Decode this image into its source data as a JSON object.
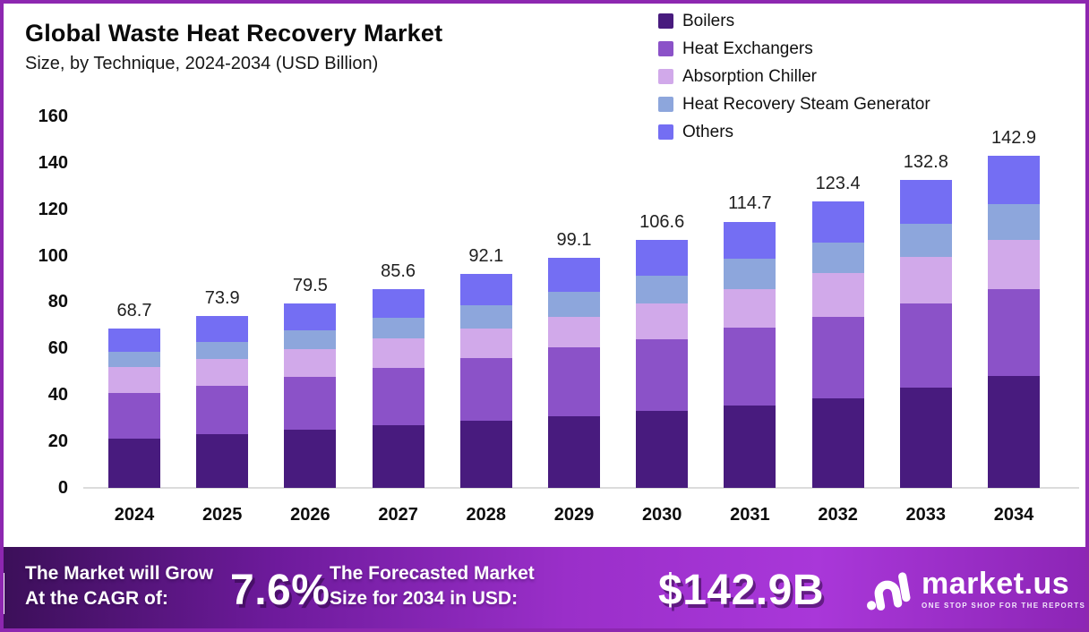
{
  "header": {
    "title": "Global Waste Heat Recovery Market",
    "subtitle": "Size, by Technique, 2024-2034 (USD Billion)"
  },
  "chart_data": {
    "type": "bar",
    "stacked": true,
    "title": "Global Waste Heat Recovery Market Size, by Technique, 2024-2034 (USD Billion)",
    "categories": [
      "2024",
      "2025",
      "2026",
      "2027",
      "2028",
      "2029",
      "2030",
      "2031",
      "2032",
      "2033",
      "2034"
    ],
    "series": [
      {
        "name": "Boilers",
        "color": "#481b7e",
        "values": [
          21.3,
          23.1,
          25.1,
          27.0,
          29.0,
          31.0,
          33.3,
          35.3,
          38.7,
          43.2,
          48.0
        ]
      },
      {
        "name": "Heat Exchangers",
        "color": "#8b52c8",
        "values": [
          19.4,
          21.0,
          22.6,
          24.7,
          26.9,
          29.4,
          30.6,
          33.7,
          34.9,
          36.2,
          37.6
        ]
      },
      {
        "name": "Absorption Chiller",
        "color": "#d1a9ea",
        "values": [
          11.2,
          11.6,
          12.1,
          12.6,
          12.9,
          13.2,
          15.5,
          16.6,
          19.0,
          20.1,
          21.3
        ]
      },
      {
        "name": "Heat Recovery Steam Generator",
        "color": "#8da6dc",
        "values": [
          6.6,
          7.3,
          8.2,
          9.0,
          9.9,
          10.9,
          12.0,
          13.2,
          13.2,
          14.3,
          15.5
        ]
      },
      {
        "name": "Others",
        "color": "#746ef3",
        "values": [
          10.2,
          10.9,
          11.5,
          12.3,
          13.4,
          14.6,
          15.2,
          15.9,
          17.6,
          19.0,
          20.5
        ]
      }
    ],
    "totals": [
      "68.7",
      "73.9",
      "79.5",
      "85.6",
      "92.1",
      "99.1",
      "106.6",
      "114.7",
      "123.4",
      "132.8",
      "142.9"
    ],
    "xlabel": "",
    "ylabel": "",
    "ylim": [
      0,
      160
    ],
    "ytick_step": 20,
    "grid": false,
    "legend_position": "top-right"
  },
  "footer": {
    "cagr_label_line1": "The Market will Grow",
    "cagr_label_line2": "At the CAGR of:",
    "cagr_value": "7.6%",
    "forecast_label_line1": "The Forecasted Market",
    "forecast_label_line2": "Size for 2034 in USD:",
    "forecast_value": "$142.9B",
    "brand": {
      "name": "market.us",
      "tagline": "ONE STOP SHOP FOR THE REPORTS",
      "logo_icon": "market-us-monogram-icon"
    }
  },
  "colors": {
    "frame_border": "#8d27b0",
    "background": "#ffffff",
    "banner_gradient_start": "#3b0f58",
    "banner_gradient_end": "#8c25b5",
    "axis_line": "#dcdcdc"
  }
}
